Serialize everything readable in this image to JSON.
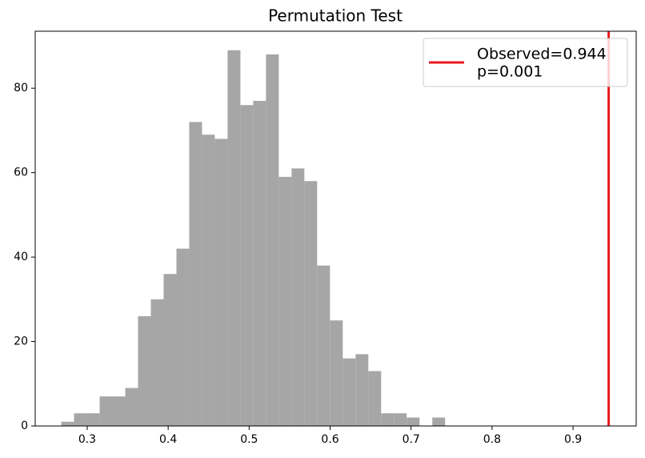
{
  "chart_data": {
    "type": "histogram",
    "title": "Permutation Test",
    "bins": [
      0.268,
      0.2838,
      0.2996,
      0.3154,
      0.3312,
      0.347,
      0.3628,
      0.3786,
      0.3944,
      0.4102,
      0.426,
      0.4418,
      0.4576,
      0.4734,
      0.4892,
      0.505,
      0.5208,
      0.5366,
      0.5524,
      0.5682,
      0.584,
      0.5998,
      0.6156,
      0.6314,
      0.6472,
      0.663,
      0.6788,
      0.6946,
      0.7104,
      0.7262,
      0.742
    ],
    "values": [
      1,
      3,
      3,
      7,
      7,
      9,
      26,
      30,
      36,
      42,
      72,
      69,
      68,
      89,
      76,
      77,
      88,
      59,
      61,
      58,
      38,
      25,
      16,
      17,
      13,
      3,
      3,
      2,
      0,
      2
    ],
    "color": "#a6a6a6",
    "observed": {
      "value": 0.944,
      "color": "#e8191c",
      "label": [
        "Observed=0.944",
        "p=0.001"
      ]
    },
    "xlim": [
      0.2358,
      0.978
    ],
    "ylim": [
      0,
      93.5
    ],
    "xticks": [
      0.3,
      0.4,
      0.5,
      0.6,
      0.7,
      0.8,
      0.9
    ],
    "yticks": [
      0,
      20,
      40,
      60,
      80
    ],
    "legend_position": "upper right"
  }
}
